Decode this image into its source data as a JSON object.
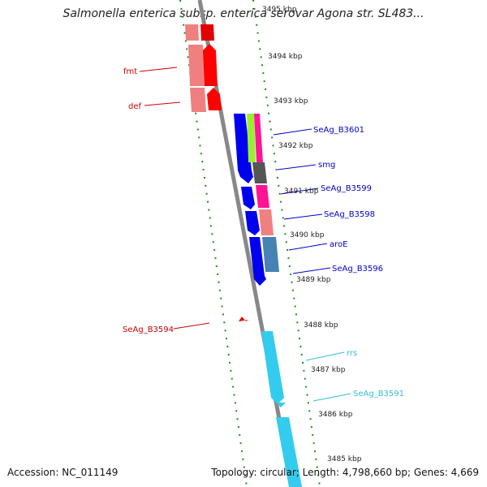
{
  "title": "Salmonella enterica subsp. enterica serovar Agona str. SL483...",
  "footer": {
    "accession": "Accession: NC_011149",
    "summary": "Topology: circular; Length: 4,798,660 bp; Genes: 4,669"
  },
  "ticks": [
    {
      "kbp": 3495,
      "label": "3495 kbp"
    },
    {
      "kbp": 3494,
      "label": "3494 kbp"
    },
    {
      "kbp": 3493,
      "label": "3493 kbp"
    },
    {
      "kbp": 3492,
      "label": "3492 kbp"
    },
    {
      "kbp": 3491,
      "label": "3491 kbp"
    },
    {
      "kbp": 3490,
      "label": "3490 kbp"
    },
    {
      "kbp": 3489,
      "label": "3489 kbp"
    },
    {
      "kbp": 3488,
      "label": "3488 kbp"
    },
    {
      "kbp": 3487,
      "label": "3487 kbp"
    },
    {
      "kbp": 3486,
      "label": "3486 kbp"
    },
    {
      "kbp": 3485,
      "label": "3485 kbp"
    }
  ],
  "gene_labels": [
    {
      "name": "fmt",
      "side": "left",
      "color": "#cc0000"
    },
    {
      "name": "def",
      "side": "left",
      "color": "#cc0000"
    },
    {
      "name": "SeAg_B3594",
      "side": "left",
      "color": "#cc0000"
    },
    {
      "name": "SeAg_B3601",
      "side": "right",
      "color": "#0000cc"
    },
    {
      "name": "smg",
      "side": "right",
      "color": "#0000cc"
    },
    {
      "name": "SeAg_B3599",
      "side": "right",
      "color": "#0000cc"
    },
    {
      "name": "SeAg_B3598",
      "side": "right",
      "color": "#0000cc"
    },
    {
      "name": "aroE",
      "side": "right",
      "color": "#0000cc"
    },
    {
      "name": "SeAg_B3596",
      "side": "right",
      "color": "#0000cc"
    },
    {
      "name": "rrs",
      "side": "right",
      "color": "#33bbdd"
    },
    {
      "name": "SeAg_B3591",
      "side": "right",
      "color": "#33bbdd"
    }
  ]
}
